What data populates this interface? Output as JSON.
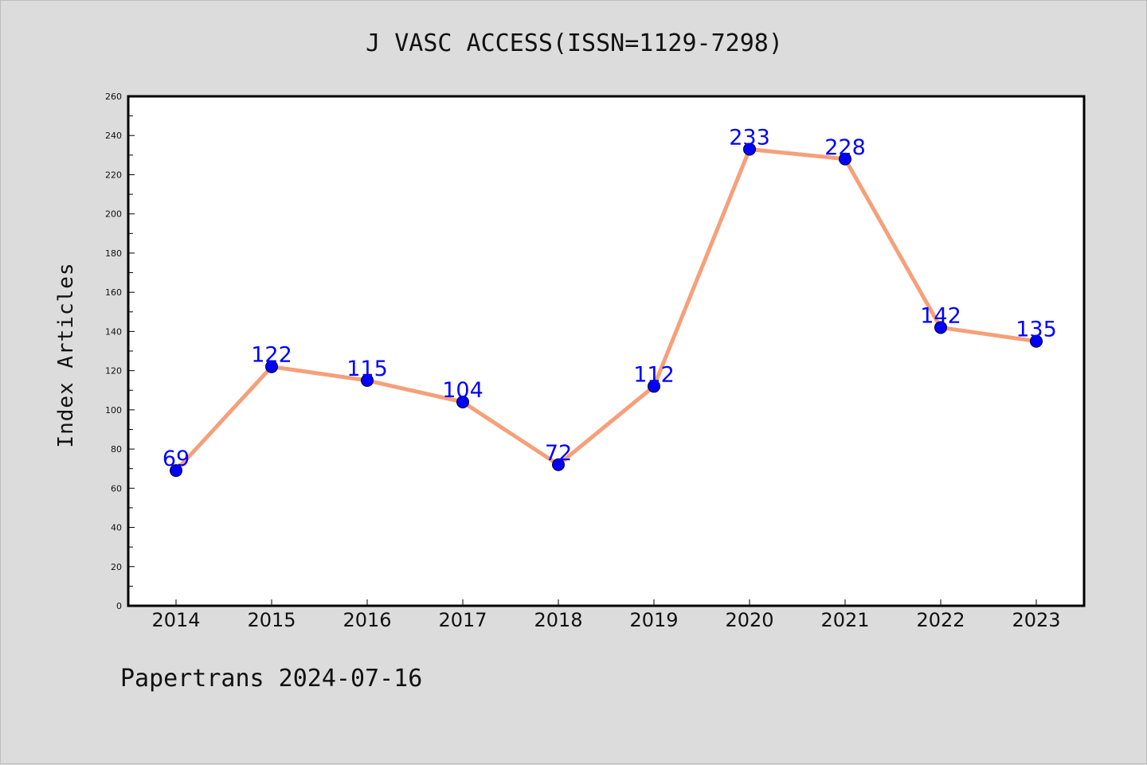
{
  "chart_data": {
    "type": "line",
    "title": "J VASC ACCESS(ISSN=1129-7298)",
    "ylabel": "Index Articles",
    "xlabel": "",
    "categories": [
      "2014",
      "2015",
      "2016",
      "2017",
      "2018",
      "2019",
      "2020",
      "2021",
      "2022",
      "2023"
    ],
    "values": [
      69,
      122,
      115,
      104,
      72,
      112,
      233,
      228,
      142,
      135
    ],
    "ylim": [
      0,
      260
    ],
    "yticks": [
      0,
      20,
      40,
      60,
      80,
      100,
      120,
      140,
      160,
      180,
      200,
      220,
      240,
      260
    ],
    "grid": false,
    "line_color": "#f5a07a",
    "marker_color": "#0000ff",
    "label_color": "#0000ff"
  },
  "footer": {
    "text": "Papertrans 2024-07-16"
  }
}
